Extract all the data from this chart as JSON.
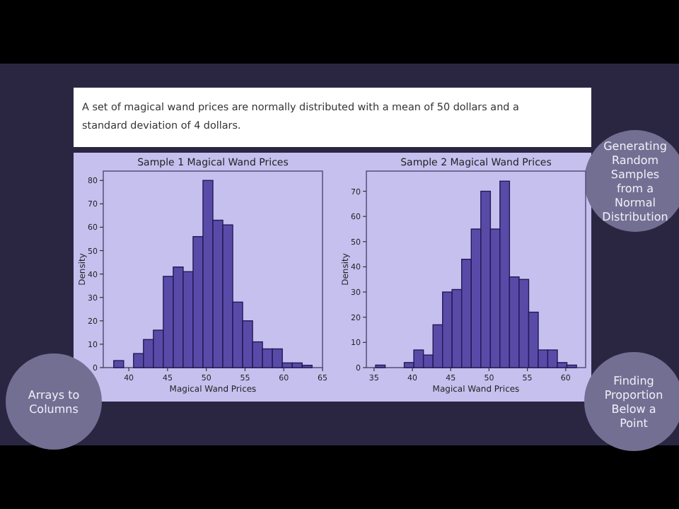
{
  "chart_data": [
    {
      "type": "other",
      "annotations": [
        "A set of magical wand prices are normally distributed with a mean of 50 dollars and a standard deviation of 4 dollars.",
        "Generating Random Samples from a Normal Distribution",
        "Arrays to Columns",
        "Finding Proportion Below a Point"
      ]
    },
    {
      "type": "histogram",
      "title": "Sample 1 Magical Wand Prices",
      "xlabel": "Magical Wand Prices",
      "ylabel": "Density",
      "color": "#5a4aa8",
      "bins": [
        38.05,
        39.33,
        40.61,
        41.89,
        43.17,
        44.45,
        45.73,
        47.01,
        48.29,
        49.57,
        50.85,
        52.13,
        53.41,
        54.69,
        55.97,
        57.25,
        58.53,
        59.81,
        61.09,
        62.37,
        63.65
      ],
      "values": [
        3,
        0,
        6,
        12,
        16,
        39,
        43,
        41,
        56,
        80,
        63,
        61,
        28,
        20,
        11,
        8,
        8,
        2,
        2,
        1
      ],
      "xlim": [
        36.7,
        65
      ],
      "xticks": [
        40,
        45,
        50,
        55,
        60,
        65
      ],
      "ylim": [
        0,
        84
      ],
      "yticks": [
        0,
        10,
        20,
        30,
        40,
        50,
        60,
        70,
        80
      ]
    },
    {
      "type": "histogram",
      "title": "Sample 2 Magical Wand Prices",
      "xlabel": "Magical Wand Prices",
      "ylabel": "Density",
      "color": "#5a4aa8",
      "bins": [
        35.2,
        36.45,
        37.7,
        38.94,
        40.19,
        41.44,
        42.69,
        43.94,
        45.18,
        46.43,
        47.68,
        48.93,
        50.18,
        51.42,
        52.67,
        53.92,
        55.17,
        56.42,
        57.66,
        58.91,
        60.16,
        61.41
      ],
      "values": [
        1,
        0,
        0,
        2,
        7,
        5,
        17,
        30,
        31,
        43,
        55,
        70,
        55,
        74,
        36,
        35,
        22,
        7,
        7,
        2,
        1
      ],
      "xlim": [
        34,
        62.6
      ],
      "xticks": [
        35,
        40,
        45,
        50,
        55,
        60
      ],
      "ylim": [
        0,
        78
      ],
      "yticks": [
        0,
        10,
        20,
        30,
        40,
        50,
        60,
        70
      ]
    }
  ]
}
